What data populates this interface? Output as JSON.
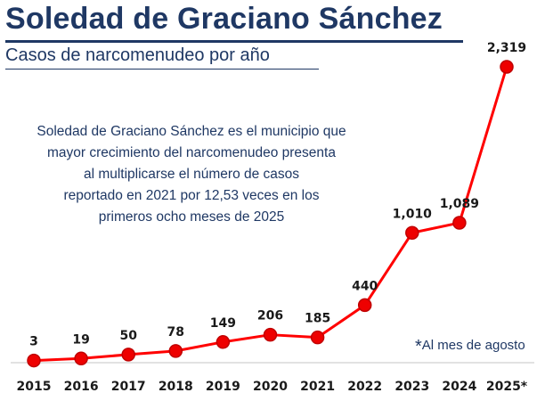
{
  "header": {
    "title": "Soledad de Graciano Sánchez",
    "subtitle": "Casos de narcomenudeo por año"
  },
  "annotation": [
    "Soledad de Graciano Sánchez es el municipio que",
    "mayor crecimiento del narcomenudeo presenta",
    "al multiplicarse el número de casos",
    "reportado en 2021 por 12,53 veces en los",
    "primeros ocho meses de 2025"
  ],
  "footnote": {
    "star": "*",
    "text": "Al mes de agosto"
  },
  "colors": {
    "title": "#1f3864",
    "line": "#ff0000",
    "marker": "#ee0000",
    "marker_edge": "#c00000",
    "axis": "#d9d9d9"
  },
  "chart_data": {
    "type": "line",
    "title": "Casos de narcomenudeo por año",
    "xlabel": "",
    "ylabel": "",
    "categories": [
      "2015",
      "2016",
      "2017",
      "2018",
      "2019",
      "2020",
      "2021",
      "2022",
      "2023",
      "2024",
      "2025*"
    ],
    "values": [
      3,
      19,
      50,
      78,
      149,
      206,
      185,
      440,
      1010,
      1089,
      2319
    ],
    "data_labels": [
      "3",
      "19",
      "50",
      "78",
      "149",
      "206",
      "185",
      "440",
      "1,010",
      "1,089",
      "2,319"
    ],
    "ylim": [
      0,
      2319
    ],
    "grid": false,
    "legend": "none"
  }
}
